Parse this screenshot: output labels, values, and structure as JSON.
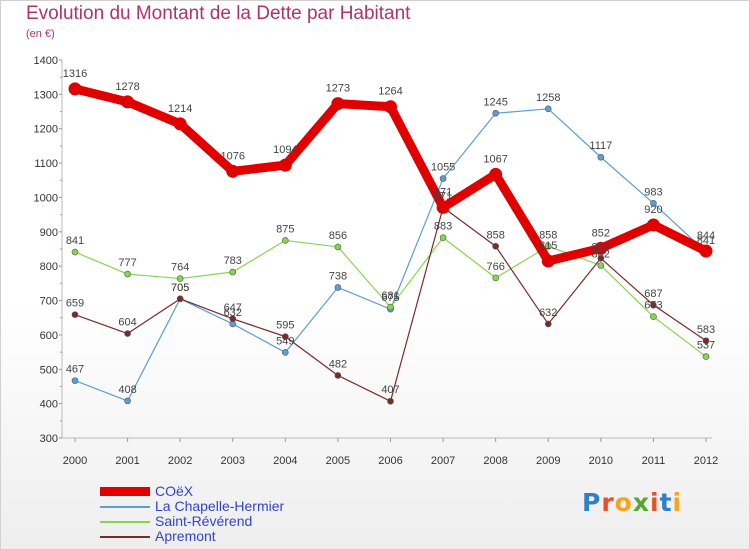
{
  "header": {
    "title": "Evolution du Montant de la Dette par Habitant",
    "subtitle": "(en €)"
  },
  "logo": {
    "text": "Proxiti",
    "colors": [
      "#2e80c8",
      "#e8502a",
      "#f3a51f",
      "#54a832",
      "#e8502a",
      "#2e80c8",
      "#f3a51f"
    ]
  },
  "chart_data": {
    "type": "line",
    "title": "Evolution du Montant de la Dette par Habitant",
    "subtitle": "(en €)",
    "xlabel": "",
    "ylabel": "",
    "x": [
      "2000",
      "2001",
      "2002",
      "2003",
      "2004",
      "2005",
      "2006",
      "2007",
      "2008",
      "2009",
      "2010",
      "2011",
      "2012"
    ],
    "ylim": [
      300,
      1400
    ],
    "yticks": [
      300,
      400,
      500,
      600,
      700,
      800,
      900,
      1000,
      1100,
      1200,
      1300,
      1400
    ],
    "grid": false,
    "legend_position": "bottom-left",
    "series": [
      {
        "name": "COëX",
        "color": "#e00000",
        "values": [
          1316,
          1278,
          1214,
          1076,
          1094,
          1273,
          1264,
          971,
          1067,
          815,
          852,
          920,
          844
        ],
        "labels": [
          "1316",
          "1278",
          "1214",
          "1076",
          "1094",
          "1273",
          "1264",
          "971",
          "1067",
          "815",
          "852",
          "920",
          "844"
        ]
      },
      {
        "name": "La Chapelle-Hermier",
        "color": "#5a9fd4",
        "values": [
          467,
          408,
          705,
          632,
          549,
          738,
          675,
          1055,
          1245,
          1258,
          1117,
          983,
          841
        ],
        "labels": [
          "467",
          "408",
          "705",
          "632",
          "549",
          "738",
          "675",
          "1055",
          "1245",
          "1258",
          "1117",
          "983",
          "841"
        ]
      },
      {
        "name": "Saint-Révérend",
        "color": "#86d64c",
        "values": [
          841,
          777,
          764,
          783,
          875,
          856,
          681,
          883,
          766,
          858,
          802,
          653,
          537
        ],
        "labels": [
          "841",
          "777",
          "764",
          "783",
          "875",
          "856",
          "681",
          "883",
          "766",
          "858",
          "802",
          "653",
          "537"
        ]
      },
      {
        "name": "Apremont",
        "color": "#7b2a2a",
        "values": [
          659,
          604,
          705,
          647,
          595,
          482,
          407,
          971,
          858,
          632,
          823,
          687,
          583
        ],
        "labels": [
          "659",
          "604",
          "705",
          "647",
          "595",
          "482",
          "407",
          "971",
          "858",
          "632",
          "823",
          "687",
          "583"
        ]
      }
    ]
  }
}
